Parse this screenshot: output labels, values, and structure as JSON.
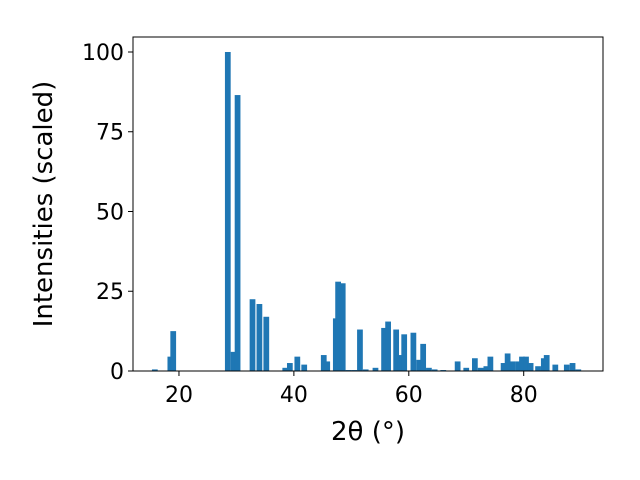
{
  "chart_data": {
    "type": "bar",
    "x_label": "2θ (°)",
    "y_label": "Intensities (scaled)",
    "color": "#1f77b4",
    "x": [
      15.8,
      18.5,
      19.0,
      28.5,
      29.5,
      30.2,
      32.8,
      34.0,
      35.2,
      38.5,
      39.3,
      40.6,
      41.8,
      45.2,
      45.8,
      47.3,
      47.7,
      48.5,
      49.5,
      50.5,
      51.5,
      52.5,
      54.2,
      55.7,
      56.4,
      57.8,
      58.5,
      59.2,
      60.8,
      61.8,
      62.5,
      63.5,
      64.5,
      66.0,
      68.5,
      70.0,
      71.5,
      72.5,
      73.5,
      74.2,
      76.5,
      77.2,
      78.0,
      79.0,
      79.7,
      80.4,
      81.2,
      82.5,
      83.5,
      84.0,
      85.5,
      87.5,
      88.5,
      89.5
    ],
    "values": [
      0.5,
      4.5,
      12.5,
      100,
      6,
      86.5,
      22.5,
      21,
      17,
      1,
      2.5,
      4.5,
      2,
      5,
      3,
      16.5,
      28,
      27.5,
      0.3,
      0.3,
      13,
      0.5,
      1,
      13.5,
      15.5,
      13,
      5,
      11.5,
      12,
      3.5,
      8.5,
      1,
      0.5,
      0.3,
      3,
      1,
      4,
      1,
      1.5,
      4.5,
      2.5,
      5.5,
      3,
      3,
      4.5,
      4.5,
      2.5,
      1.5,
      4,
      5,
      2,
      2,
      2.5,
      0.5
    ],
    "xlim": [
      12,
      93.8
    ],
    "xticks": [
      20,
      40,
      60,
      80
    ],
    "ylim": [
      0,
      104.7
    ],
    "yticks": [
      0,
      25,
      50,
      75,
      100
    ]
  }
}
